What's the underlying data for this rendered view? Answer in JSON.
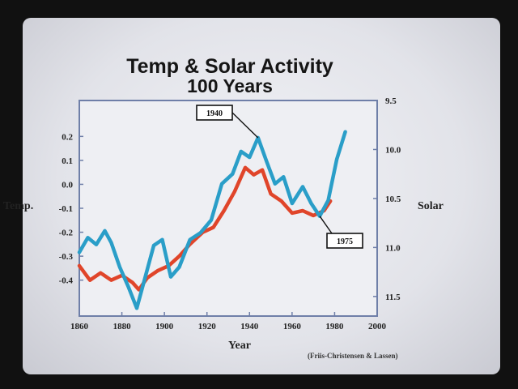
{
  "chart_data": {
    "type": "line",
    "title": "Temp & Solar Activity",
    "subtitle": "100 Years",
    "xlabel": "Year",
    "ylabel_left": "Temp.",
    "ylabel_right": "Solar",
    "source": "(Friis-Christensen & Lassen)",
    "xlim": [
      1860,
      2000
    ],
    "x_ticks": [
      "1860",
      "1880",
      "1900",
      "1920",
      "1940",
      "1960",
      "1980",
      "2000"
    ],
    "y_left_lim": [
      -0.55,
      0.35
    ],
    "y_left_ticks": [
      "0.2",
      "0.1",
      "0.0",
      "-0.1",
      "-0.2",
      "-0.3",
      "-0.4"
    ],
    "y_right_lim": [
      9.5,
      11.7
    ],
    "y_right_inverted": true,
    "y_right_ticks": [
      "9.5",
      "10.0",
      "10.5",
      "11.0",
      "11.5"
    ],
    "series": [
      {
        "name": "Temp.",
        "axis": "left",
        "color": "#e0452a",
        "x": [
          1860,
          1865,
          1870,
          1875,
          1880,
          1885,
          1888,
          1892,
          1897,
          1902,
          1907,
          1912,
          1918,
          1923,
          1928,
          1933,
          1938,
          1942,
          1946,
          1950,
          1955,
          1960,
          1965,
          1970,
          1975,
          1978
        ],
        "values": [
          -0.34,
          -0.4,
          -0.37,
          -0.4,
          -0.38,
          -0.41,
          -0.44,
          -0.39,
          -0.36,
          -0.34,
          -0.3,
          -0.25,
          -0.2,
          -0.18,
          -0.11,
          -0.03,
          0.07,
          0.04,
          0.06,
          -0.04,
          -0.07,
          -0.12,
          -0.11,
          -0.13,
          -0.11,
          -0.07
        ]
      },
      {
        "name": "Solar",
        "axis": "right",
        "color": "#2a9ec8",
        "x": [
          1860,
          1864,
          1868,
          1872,
          1875,
          1879,
          1883,
          1887,
          1891,
          1895,
          1899,
          1903,
          1907,
          1912,
          1917,
          1922,
          1927,
          1932,
          1936,
          1940,
          1944,
          1948,
          1952,
          1956,
          1960,
          1965,
          1969,
          1973,
          1977,
          1981,
          1985
        ],
        "values": [
          11.05,
          10.9,
          10.97,
          10.83,
          10.95,
          11.2,
          11.4,
          11.62,
          11.3,
          10.98,
          10.92,
          11.3,
          11.2,
          10.92,
          10.85,
          10.72,
          10.35,
          10.25,
          10.02,
          10.08,
          9.88,
          10.12,
          10.35,
          10.28,
          10.55,
          10.38,
          10.55,
          10.68,
          10.52,
          10.1,
          9.82
        ]
      }
    ],
    "annotations": [
      {
        "text": "1940",
        "target": "Solar",
        "x": 1944
      },
      {
        "text": "1975",
        "target": "Solar",
        "x": 1973
      }
    ],
    "grid": false
  }
}
